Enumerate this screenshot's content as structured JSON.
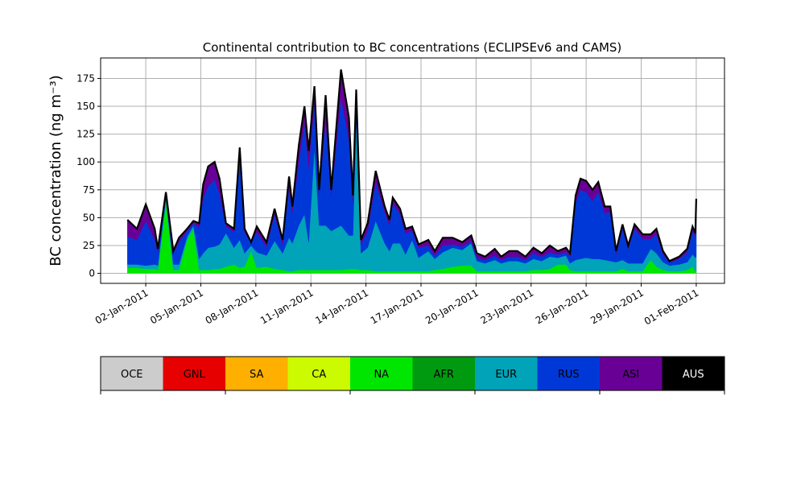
{
  "chart_data": {
    "type": "area",
    "stacked": true,
    "title": "Continental contribution to BC concentrations (ECLIPSEv6 and CAMS)",
    "xlabel": "",
    "ylabel": "BC concentration (ng m⁻³)",
    "x_unit": "days since 01-Jan-2011",
    "xlim": [
      -1.46,
      32.54
    ],
    "ylim": [
      -9,
      193.4
    ],
    "grid": true,
    "yticks": [
      0,
      25,
      50,
      75,
      100,
      125,
      150,
      175
    ],
    "xticks": [
      {
        "day": 1,
        "label": "02-Jan-2011"
      },
      {
        "day": 4,
        "label": "05-Jan-2011"
      },
      {
        "day": 7,
        "label": "08-Jan-2011"
      },
      {
        "day": 10,
        "label": "11-Jan-2011"
      },
      {
        "day": 13,
        "label": "14-Jan-2011"
      },
      {
        "day": 16,
        "label": "17-Jan-2011"
      },
      {
        "day": 19,
        "label": "20-Jan-2011"
      },
      {
        "day": 22,
        "label": "23-Jan-2011"
      },
      {
        "day": 25,
        "label": "26-Jan-2011"
      },
      {
        "day": 28,
        "label": "29-Jan-2011"
      },
      {
        "day": 31,
        "label": "01-Feb-2011"
      }
    ],
    "legend": {
      "placement": "bottom colorbar",
      "entries": [
        {
          "name": "OCE",
          "color": "#cccccc",
          "text": "#000"
        },
        {
          "name": "GNL",
          "color": "#e60000",
          "text": "#000"
        },
        {
          "name": "SA",
          "color": "#ffaf00",
          "text": "#000"
        },
        {
          "name": "CA",
          "color": "#ccfa00",
          "text": "#000"
        },
        {
          "name": "NA",
          "color": "#00e600",
          "text": "#000"
        },
        {
          "name": "AFR",
          "color": "#009a10",
          "text": "#000"
        },
        {
          "name": "EUR",
          "color": "#00a3b8",
          "text": "#000"
        },
        {
          "name": "RUS",
          "color": "#0038d8",
          "text": "#000"
        },
        {
          "name": "ASI",
          "color": "#680096",
          "text": "#000"
        },
        {
          "name": "AUS",
          "color": "#000000",
          "text": "#fff"
        }
      ]
    },
    "series_order": [
      "NA",
      "EUR",
      "RUS",
      "ASI"
    ],
    "points_columns": [
      "day",
      "NA",
      "EUR",
      "RUS",
      "ASI"
    ],
    "points": [
      [
        0,
        5,
        3,
        25,
        15
      ],
      [
        0.52,
        5,
        3,
        22,
        10
      ],
      [
        1.0,
        4,
        3,
        40,
        15
      ],
      [
        1.49,
        4,
        4,
        22,
        10
      ],
      [
        1.66,
        3,
        4,
        12,
        3
      ],
      [
        2.1,
        65,
        3,
        3,
        2
      ],
      [
        2.5,
        3,
        5,
        10,
        2
      ],
      [
        2.81,
        3,
        5,
        20,
        4
      ],
      [
        3.25,
        30,
        3,
        5,
        2
      ],
      [
        3.6,
        40,
        3,
        2,
        2
      ],
      [
        3.91,
        3,
        10,
        28,
        4
      ],
      [
        4.13,
        3,
        15,
        50,
        12
      ],
      [
        4.4,
        3,
        20,
        55,
        18
      ],
      [
        4.75,
        4,
        20,
        60,
        16
      ],
      [
        5.02,
        4,
        22,
        45,
        14
      ],
      [
        5.37,
        6,
        30,
        6,
        3
      ],
      [
        5.81,
        8,
        15,
        14,
        3
      ],
      [
        6.12,
        5,
        25,
        75,
        8
      ],
      [
        6.39,
        6,
        12,
        18,
        4
      ],
      [
        6.74,
        20,
        5,
        3,
        0
      ],
      [
        7.05,
        5,
        14,
        18,
        5
      ],
      [
        7.58,
        6,
        10,
        8,
        4
      ],
      [
        8.02,
        4,
        25,
        24,
        5
      ],
      [
        8.46,
        3,
        15,
        8,
        4
      ],
      [
        8.81,
        2,
        30,
        45,
        10
      ],
      [
        8.99,
        2,
        25,
        28,
        5
      ],
      [
        9.34,
        3,
        40,
        57,
        15
      ],
      [
        9.65,
        3,
        50,
        82,
        15
      ],
      [
        9.88,
        3,
        25,
        67,
        15
      ],
      [
        10.19,
        3,
        110,
        40,
        15
      ],
      [
        10.45,
        3,
        40,
        27,
        5
      ],
      [
        10.8,
        3,
        40,
        95,
        22
      ],
      [
        11.11,
        3,
        35,
        32,
        5
      ],
      [
        11.64,
        3,
        40,
        115,
        25
      ],
      [
        12.07,
        4,
        30,
        86,
        20
      ],
      [
        12.29,
        4,
        30,
        30,
        6
      ],
      [
        12.47,
        4,
        135,
        20,
        6
      ],
      [
        12.73,
        3,
        15,
        8,
        4
      ],
      [
        13.09,
        3,
        20,
        15,
        7
      ],
      [
        13.53,
        2,
        45,
        35,
        10
      ],
      [
        14.02,
        2,
        25,
        28,
        5
      ],
      [
        14.28,
        2,
        18,
        23,
        5
      ],
      [
        14.46,
        2,
        25,
        36,
        5
      ],
      [
        14.86,
        2,
        25,
        26,
        5
      ],
      [
        15.16,
        2,
        15,
        19,
        4
      ],
      [
        15.52,
        2,
        28,
        8,
        4
      ],
      [
        15.87,
        2,
        12,
        9,
        3
      ],
      [
        16.4,
        2,
        18,
        5,
        5
      ],
      [
        16.75,
        3,
        10,
        3,
        4
      ],
      [
        17.19,
        4,
        15,
        6,
        7
      ],
      [
        17.72,
        6,
        17,
        3,
        6
      ],
      [
        18.25,
        7,
        14,
        3,
        4
      ],
      [
        18.74,
        7,
        20,
        2,
        5
      ],
      [
        19.05,
        2,
        9,
        3,
        4
      ],
      [
        19.49,
        2,
        7,
        3,
        3
      ],
      [
        20.02,
        2,
        10,
        4,
        6
      ],
      [
        20.37,
        2,
        7,
        3,
        3
      ],
      [
        20.81,
        2,
        9,
        4,
        5
      ],
      [
        21.25,
        2,
        9,
        4,
        5
      ],
      [
        21.69,
        2,
        7,
        3,
        3
      ],
      [
        22.13,
        3,
        10,
        5,
        5
      ],
      [
        22.58,
        3,
        8,
        4,
        3
      ],
      [
        23.02,
        4,
        11,
        4,
        6
      ],
      [
        23.46,
        8,
        6,
        3,
        3
      ],
      [
        23.9,
        8,
        8,
        3,
        4
      ],
      [
        24.12,
        3,
        6,
        6,
        3
      ],
      [
        24.43,
        2,
        10,
        52,
        6
      ],
      [
        24.69,
        2,
        11,
        62,
        10
      ],
      [
        25.0,
        2,
        12,
        59,
        10
      ],
      [
        25.35,
        2,
        11,
        52,
        10
      ],
      [
        25.66,
        2,
        11,
        60,
        9
      ],
      [
        26.01,
        2,
        10,
        42,
        6
      ],
      [
        26.32,
        2,
        9,
        44,
        5
      ],
      [
        26.63,
        2,
        8,
        7,
        3
      ],
      [
        26.98,
        4,
        8,
        28,
        4
      ],
      [
        27.29,
        2,
        7,
        13,
        3
      ],
      [
        27.64,
        2,
        7,
        31,
        4
      ],
      [
        28.08,
        2,
        7,
        22,
        4
      ],
      [
        28.52,
        12,
        10,
        9,
        4
      ],
      [
        28.83,
        6,
        12,
        17,
        5
      ],
      [
        29.19,
        3,
        7,
        7,
        3
      ],
      [
        29.54,
        2,
        5,
        3,
        1
      ],
      [
        30.07,
        2,
        6,
        5,
        2
      ],
      [
        30.51,
        3,
        7,
        9,
        3
      ],
      [
        30.8,
        6,
        11,
        21,
        4
      ],
      [
        30.95,
        2,
        12,
        19,
        3
      ],
      [
        31.0,
        2,
        13,
        45,
        7
      ]
    ]
  }
}
